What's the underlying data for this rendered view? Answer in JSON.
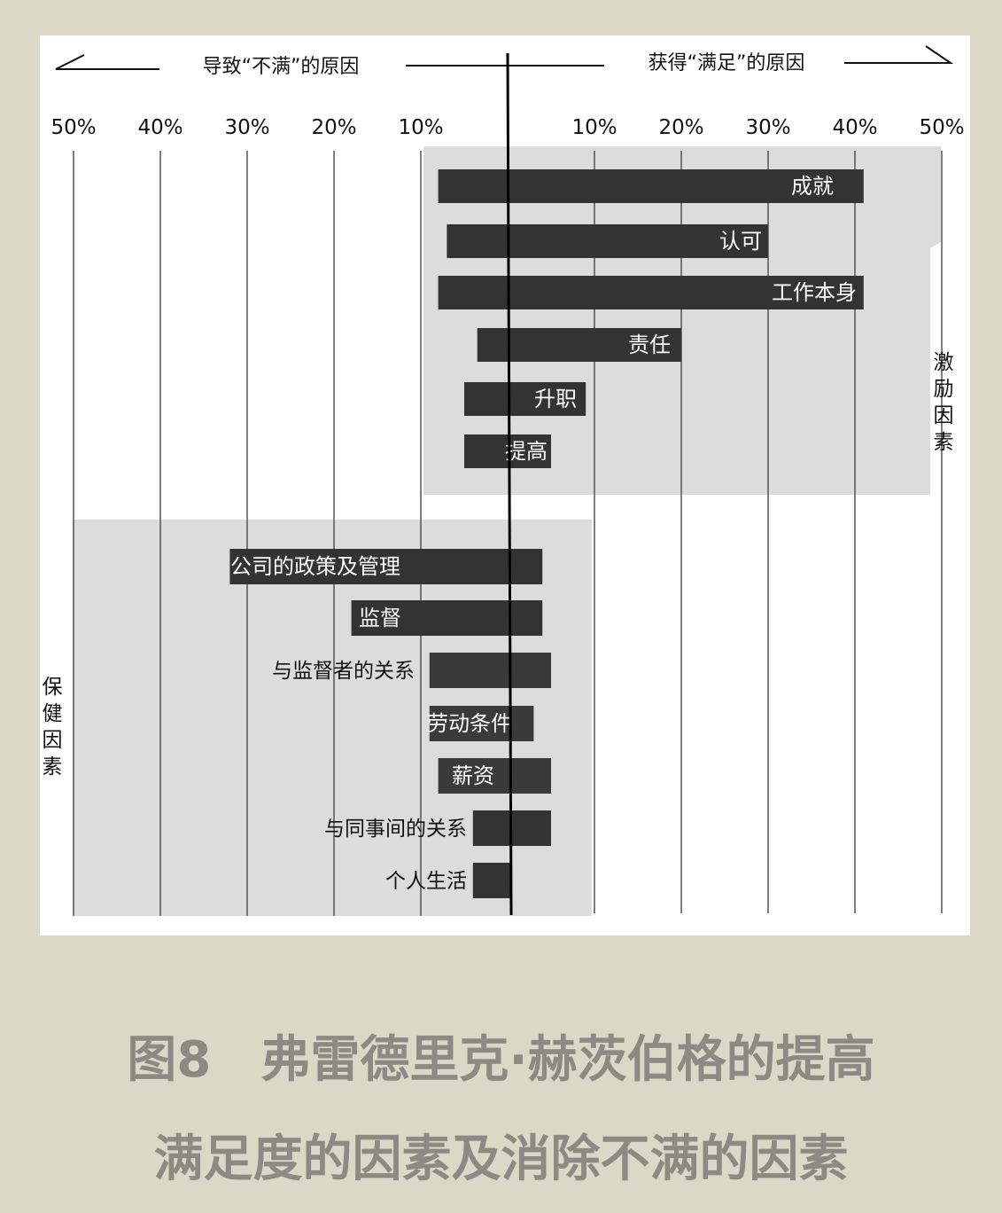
{
  "chart_data": {
    "type": "bar",
    "header_left": "导致“不满”的原因",
    "header_right": "获得“满足”的原因",
    "ticks_left": [
      "50%",
      "40%",
      "30%",
      "20%",
      "10%"
    ],
    "ticks_right": [
      "10%",
      "20%",
      "30%",
      "40%",
      "50%"
    ],
    "groups": [
      {
        "label": "激励因素",
        "chars": [
          "激",
          "励",
          "因",
          "素"
        ]
      },
      {
        "label": "保健因素",
        "chars": [
          "保",
          "健",
          "因",
          "素"
        ]
      }
    ],
    "motivators": [
      {
        "label": "成就",
        "dissatisfaction": 8,
        "satisfaction": 41
      },
      {
        "label": "认可",
        "dissatisfaction": 7,
        "satisfaction": 30
      },
      {
        "label": "工作本身",
        "dissatisfaction": 8,
        "satisfaction": 41
      },
      {
        "label": "责任",
        "dissatisfaction": 3.5,
        "satisfaction": 20
      },
      {
        "label": "升职",
        "dissatisfaction": 5,
        "satisfaction": 9
      },
      {
        "label": "提高",
        "dissatisfaction": 5,
        "satisfaction": 5
      }
    ],
    "hygiene": [
      {
        "label": "公司的政策及管理",
        "dissatisfaction": 32,
        "satisfaction": 4
      },
      {
        "label": "监督",
        "dissatisfaction": 18,
        "satisfaction": 4
      },
      {
        "label": "与监督者的关系",
        "dissatisfaction": 9,
        "satisfaction": 5
      },
      {
        "label": "劳动条件",
        "dissatisfaction": 9,
        "satisfaction": 3
      },
      {
        "label": "薪资",
        "dissatisfaction": 8,
        "satisfaction": 5
      },
      {
        "label": "与同事间的关系",
        "dissatisfaction": 4,
        "satisfaction": 5
      },
      {
        "label": "个人生活",
        "dissatisfaction": 4,
        "satisfaction": 0.5
      }
    ],
    "xlim": [
      -50,
      50
    ],
    "colors": {
      "bar": "#333333",
      "shade": "#dcdcdc",
      "panel": "#ffffff",
      "grid": "#555555"
    }
  },
  "caption": {
    "line1": "图8　弗雷德里克·赫茨伯格的提高",
    "line2": "满足度的因素及消除不满的因素"
  }
}
